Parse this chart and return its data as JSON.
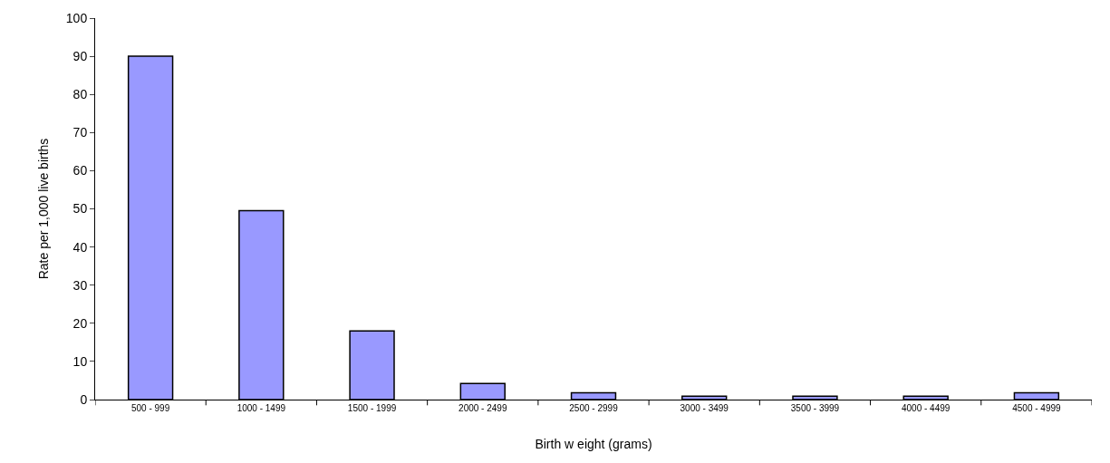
{
  "chart_data": {
    "type": "bar",
    "xlabel": "Birth w eight (grams)",
    "ylabel": "Rate per 1,000 live births",
    "categories": [
      "500 - 999",
      "1000 - 1499",
      "1500 - 1999",
      "2000 - 2499",
      "2500 - 2999",
      "3000 - 3499",
      "3500 - 3999",
      "4000 - 4499",
      "4500 - 4999"
    ],
    "values": [
      90,
      49.5,
      18,
      4.2,
      1.8,
      0.9,
      0.9,
      0.9,
      1.8
    ],
    "color": "#9999ff",
    "ylim": [
      0,
      100
    ],
    "yticks": [
      0,
      10,
      20,
      30,
      40,
      50,
      60,
      70,
      80,
      90,
      100
    ],
    "legend": false
  }
}
